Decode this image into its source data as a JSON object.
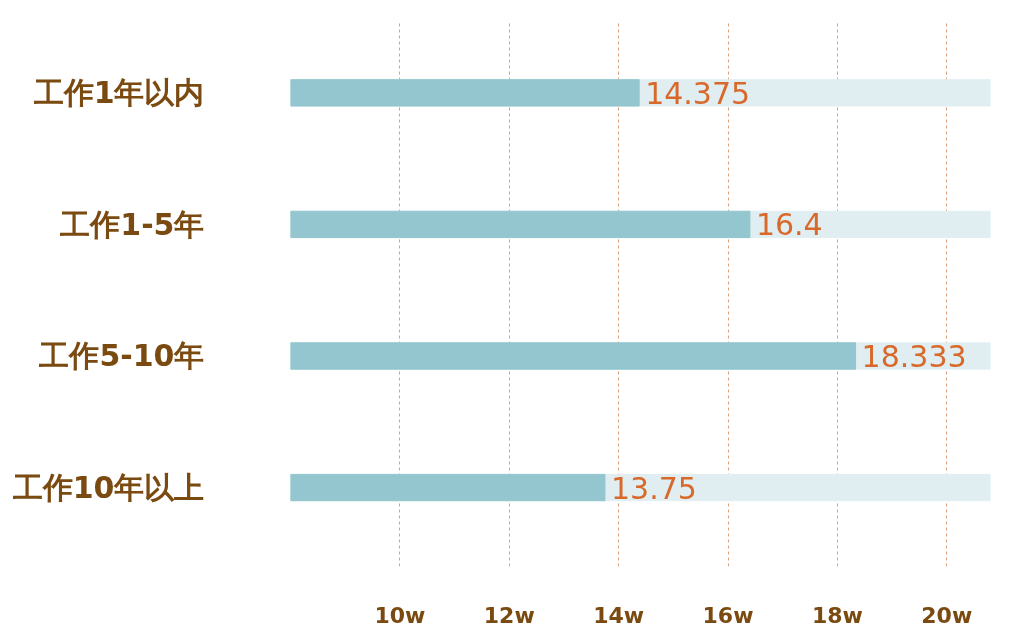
{
  "chart_data": {
    "type": "bar",
    "orientation": "horizontal",
    "categories": [
      "工作1年以内",
      "工作1-5年",
      "工作5-10年",
      "工作10年以上"
    ],
    "values": [
      14.375,
      16.4,
      18.333,
      13.75
    ],
    "color": "#93c6cf",
    "xlim": [
      8,
      20.8
    ],
    "xticks": [
      {
        "value": 10,
        "label": "10w"
      },
      {
        "value": 12,
        "label": "12w"
      },
      {
        "value": 14,
        "label": "14w"
      },
      {
        "value": 16,
        "label": "16w"
      },
      {
        "value": 18,
        "label": "18w"
      },
      {
        "value": 20,
        "label": "20w"
      }
    ],
    "grid": "x",
    "data_labels": true
  }
}
